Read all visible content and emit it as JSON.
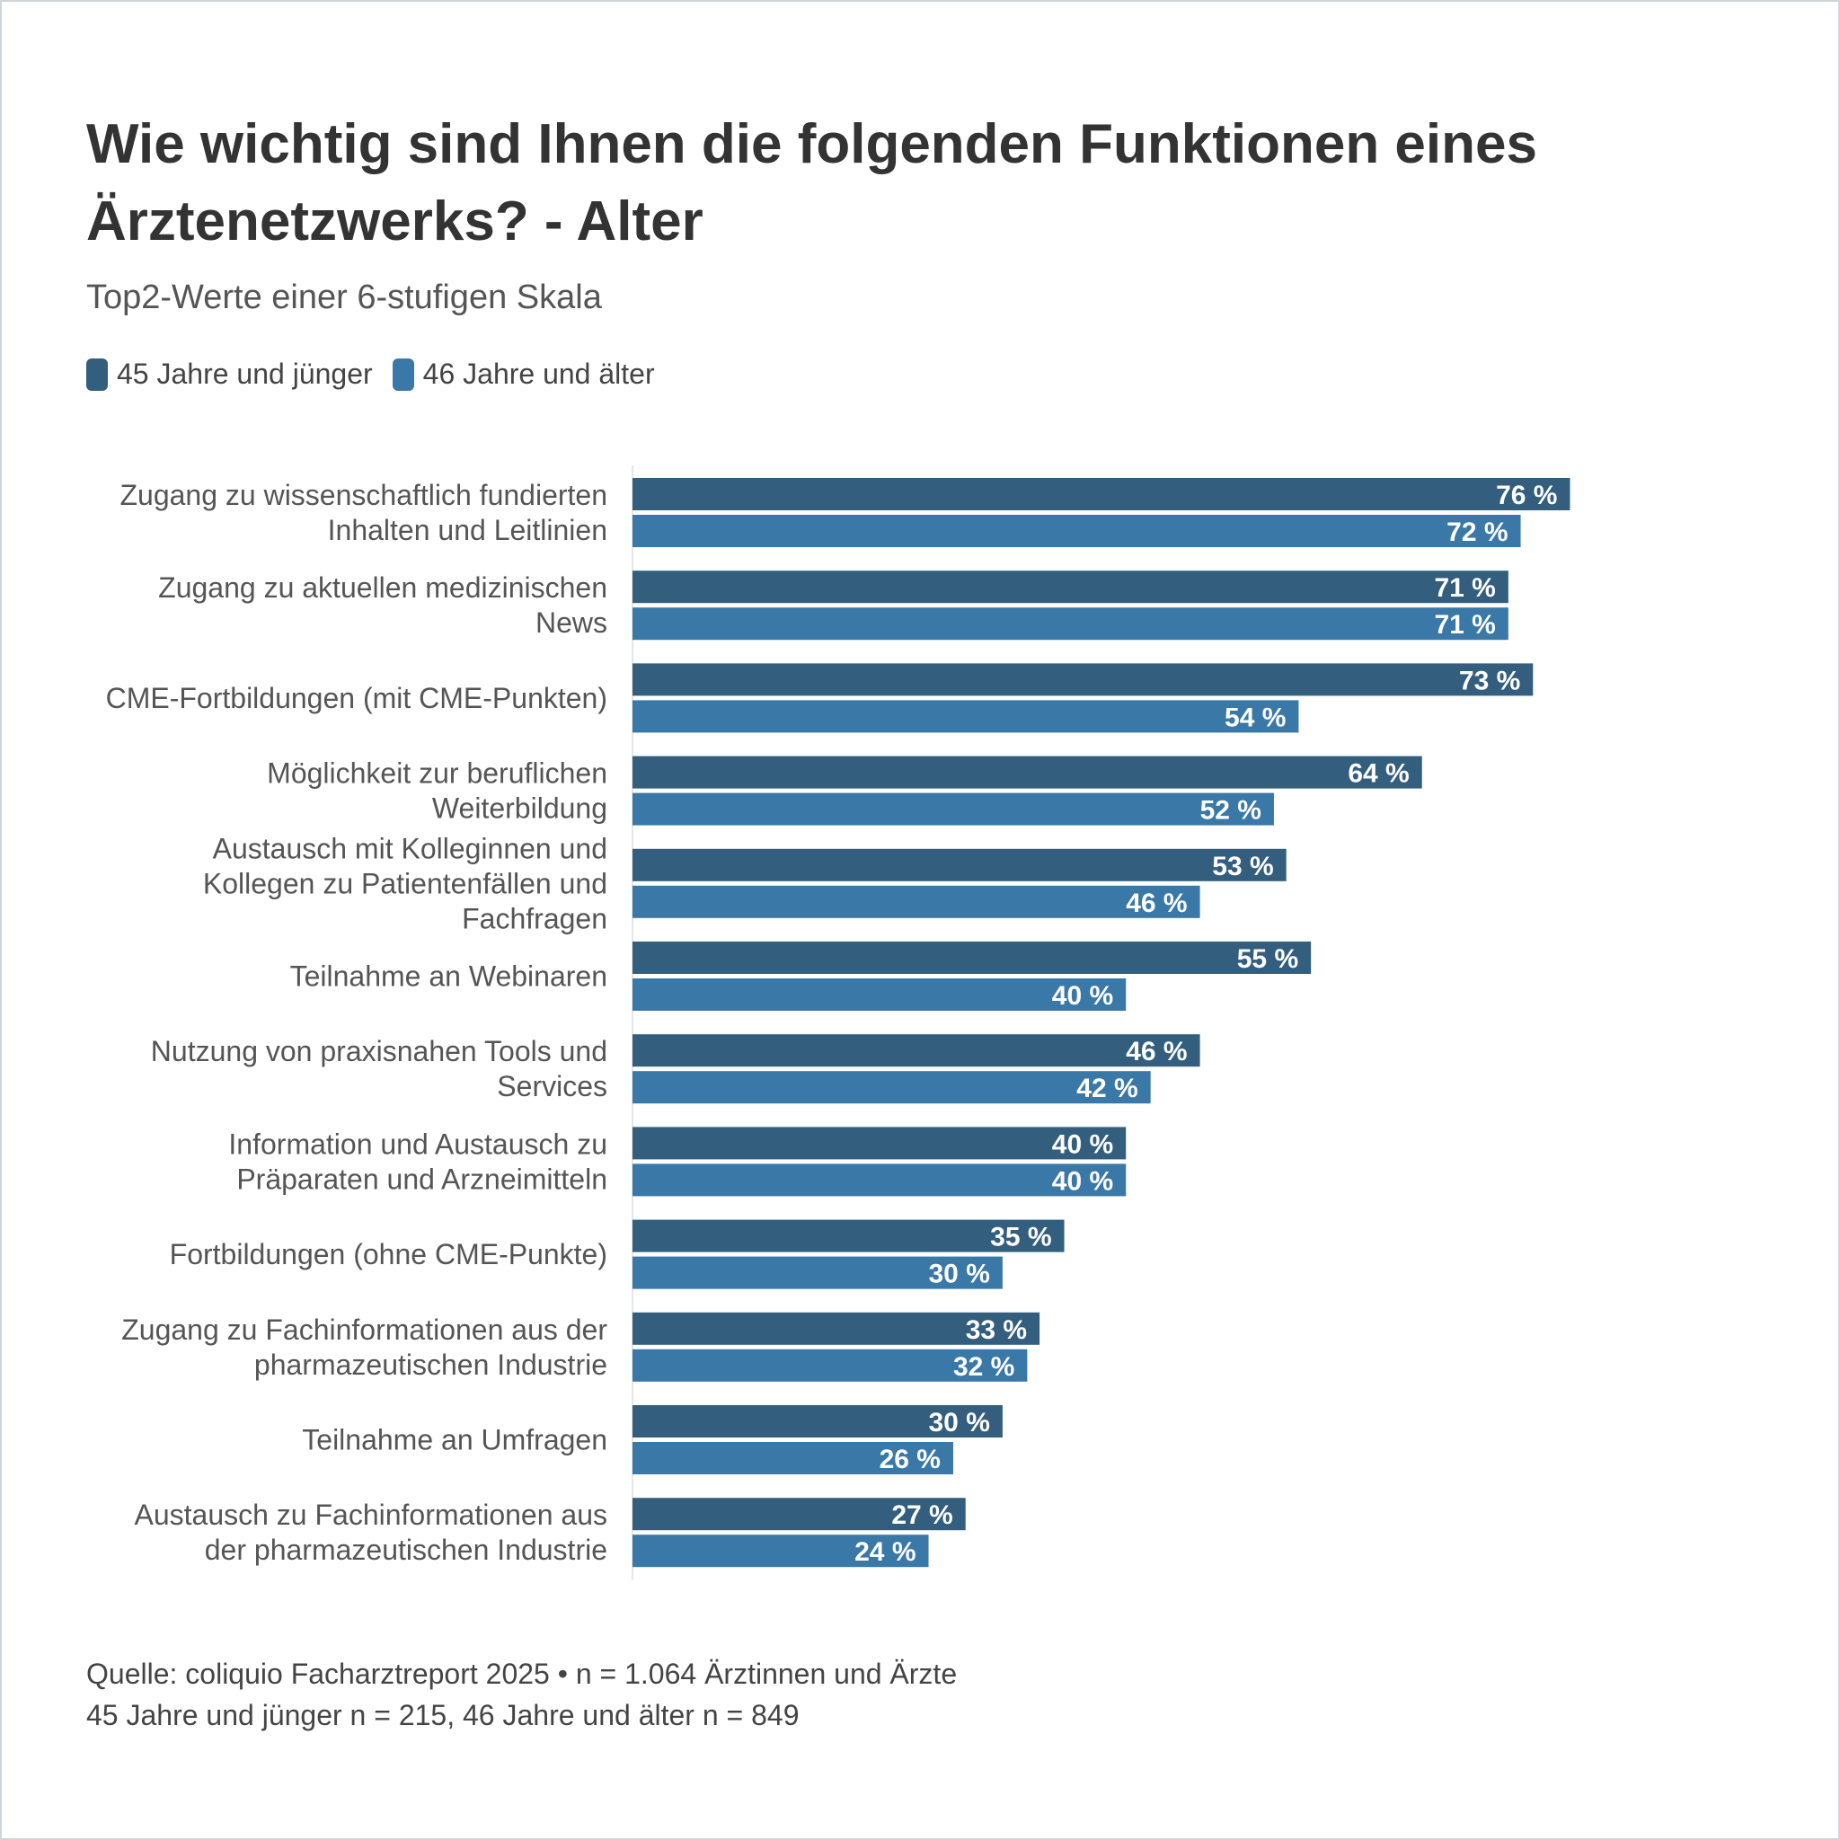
{
  "chart_data": {
    "type": "bar",
    "orientation": "horizontal",
    "title_lines": [
      "Wie wichtig sind Ihnen die folgenden Funktionen eines",
      "Ärztenetzwerks? - Alter"
    ],
    "subtitle": "Top2-Werte einer 6-stufigen Skala",
    "xlim": [
      0,
      100
    ],
    "unit": "%",
    "grid": false,
    "legend_position": "top-left",
    "categories": [
      [
        "Zugang zu wissenschaftlich fundierten",
        "Inhalten und Leitlinien"
      ],
      [
        "Zugang zu aktuellen medizinischen",
        "News"
      ],
      [
        "CME-Fortbildungen (mit CME-Punkten)"
      ],
      [
        "Möglichkeit zur beruflichen",
        "Weiterbildung"
      ],
      [
        "Austausch mit Kolleginnen und",
        "Kollegen zu Patientenfällen und",
        "Fachfragen"
      ],
      [
        "Teilnahme an Webinaren"
      ],
      [
        "Nutzung von praxisnahen Tools und",
        "Services"
      ],
      [
        "Information und Austausch zu",
        "Präparaten und Arzneimitteln"
      ],
      [
        "Fortbildungen (ohne CME-Punkte)"
      ],
      [
        "Zugang zu Fachinformationen aus der",
        "pharmazeutischen Industrie"
      ],
      [
        "Teilnahme an Umfragen"
      ],
      [
        "Austausch zu Fachinformationen aus",
        "der pharmazeutischen Industrie"
      ]
    ],
    "series": [
      {
        "name": "45 Jahre und jünger",
        "color": "#335e7e",
        "values": [
          76,
          71,
          73,
          64,
          53,
          55,
          46,
          40,
          35,
          33,
          30,
          27
        ]
      },
      {
        "name": "46 Jahre und älter",
        "color": "#3a78a8",
        "values": [
          72,
          71,
          54,
          52,
          46,
          40,
          42,
          40,
          30,
          32,
          26,
          24
        ]
      }
    ]
  },
  "footer": {
    "source": "Quelle: coliquio Facharztreport 2025 • n = 1.064 Ärztinnen und Ärzte",
    "sample": "45 Jahre und jünger n = 215, 46 Jahre und älter n = 849"
  }
}
